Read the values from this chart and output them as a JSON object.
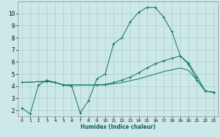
{
  "background_color": "#cce8e8",
  "grid_color": "#aacccc",
  "line_color": "#1a7a6a",
  "xlabel": "Humidex (Indice chaleur)",
  "xlim": [
    -0.5,
    23.5
  ],
  "ylim": [
    1.5,
    11.0
  ],
  "xticks": [
    0,
    1,
    2,
    3,
    4,
    5,
    6,
    7,
    8,
    9,
    10,
    11,
    12,
    13,
    14,
    15,
    16,
    17,
    18,
    19,
    20,
    21,
    22,
    23
  ],
  "yticks": [
    2,
    3,
    4,
    5,
    6,
    7,
    8,
    9,
    10
  ],
  "line1_x": [
    0,
    1,
    2,
    3,
    4,
    5,
    6,
    7,
    8,
    9,
    10,
    11,
    12,
    13,
    14,
    15,
    16,
    17,
    18,
    19,
    20,
    21,
    22,
    23
  ],
  "line1_y": [
    2.2,
    1.7,
    4.1,
    4.5,
    4.3,
    4.1,
    4.0,
    1.8,
    2.8,
    4.6,
    5.0,
    7.5,
    8.0,
    9.3,
    10.1,
    10.5,
    10.5,
    9.7,
    8.5,
    6.5,
    5.8,
    4.5,
    3.6,
    3.5
  ],
  "line2_x": [
    0,
    3,
    4,
    5,
    9,
    10,
    11,
    12,
    13,
    14,
    15,
    16,
    17,
    18,
    19,
    20,
    21,
    22,
    23
  ],
  "line2_y": [
    4.3,
    4.4,
    4.3,
    4.1,
    4.1,
    4.15,
    4.3,
    4.5,
    4.75,
    5.1,
    5.5,
    5.85,
    6.1,
    6.3,
    6.5,
    5.9,
    4.8,
    3.6,
    3.5
  ],
  "line3_x": [
    0,
    3,
    4,
    5,
    9,
    10,
    11,
    12,
    13,
    14,
    15,
    16,
    17,
    18,
    19,
    20,
    21,
    22,
    23
  ],
  "line3_y": [
    4.3,
    4.4,
    4.3,
    4.1,
    4.1,
    4.1,
    4.2,
    4.3,
    4.45,
    4.6,
    4.8,
    5.0,
    5.2,
    5.35,
    5.5,
    5.3,
    4.5,
    3.6,
    3.5
  ]
}
